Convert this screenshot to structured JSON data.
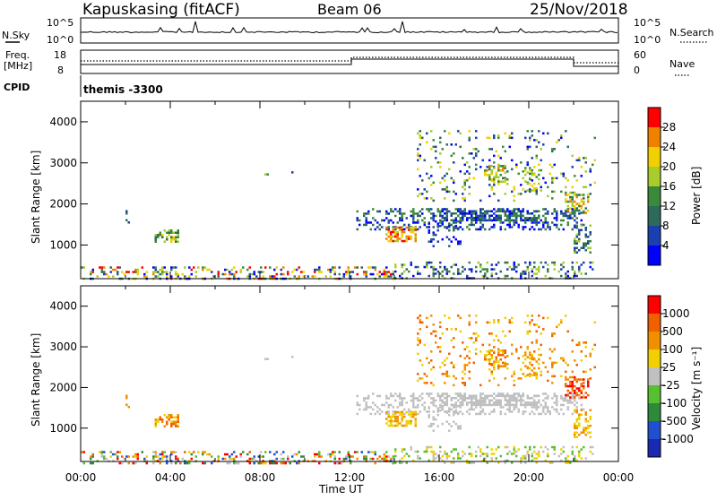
{
  "header": {
    "station": "Kapuskasing (fitACF)",
    "beam": "Beam 06",
    "date": "25/Nov/2018"
  },
  "top_panels": {
    "nsky_label": "N.Sky",
    "nsky_ticks": [
      "10^5",
      "10^0"
    ],
    "nsearch_label": "N.Search",
    "nsearch_ticks": [
      "10^5",
      "10^0"
    ],
    "freq_label_1": "Freq.",
    "freq_label_2": "[MHz]",
    "freq_ticks": [
      "18",
      "8"
    ],
    "nave_label": "Nave",
    "nave_ticks": [
      "60",
      "0"
    ],
    "cpid_label": "CPID",
    "cpid_value": "themis -3300"
  },
  "colors": {
    "power_scale": [
      "#0000ff",
      "#1a3fb0",
      "#2e6a5a",
      "#3a8a3a",
      "#a8cc2a",
      "#f0d000",
      "#f08000",
      "#ff0000"
    ],
    "velocity_scale": [
      "#1a2ab0",
      "#2050d0",
      "#2e8a3a",
      "#55c030",
      "#c0c0c0",
      "#f0d000",
      "#f09000",
      "#f06000",
      "#ff0000"
    ]
  },
  "chart_data": [
    {
      "type": "heatmap",
      "name": "power",
      "ylabel": "Slant Range [km]",
      "y_ticks": [
        "1000",
        "2000",
        "3000",
        "4000"
      ],
      "ylim": [
        180,
        4500
      ],
      "xlim": [
        0,
        24
      ],
      "colorbar_label": "Power [dB]",
      "colorbar_ticks": [
        "4",
        "8",
        "12",
        "16",
        "20",
        "24",
        "28"
      ],
      "colorbar_range": [
        0,
        32
      ]
    },
    {
      "type": "heatmap",
      "name": "velocity",
      "ylabel": "Slant Range [km]",
      "y_ticks": [
        "1000",
        "2000",
        "3000",
        "4000"
      ],
      "ylim": [
        180,
        4500
      ],
      "xlim": [
        0,
        24
      ],
      "colorbar_label": "Velocity [m s⁻¹]",
      "colorbar_ticks": [
        "1000",
        "500",
        "100",
        "25",
        "-25",
        "-100",
        "-500",
        "-1000"
      ]
    }
  ],
  "x_axis": {
    "ticks": [
      "00:00",
      "04:00",
      "08:00",
      "12:00",
      "16:00",
      "20:00",
      "00:00"
    ],
    "label": "Time UT"
  }
}
